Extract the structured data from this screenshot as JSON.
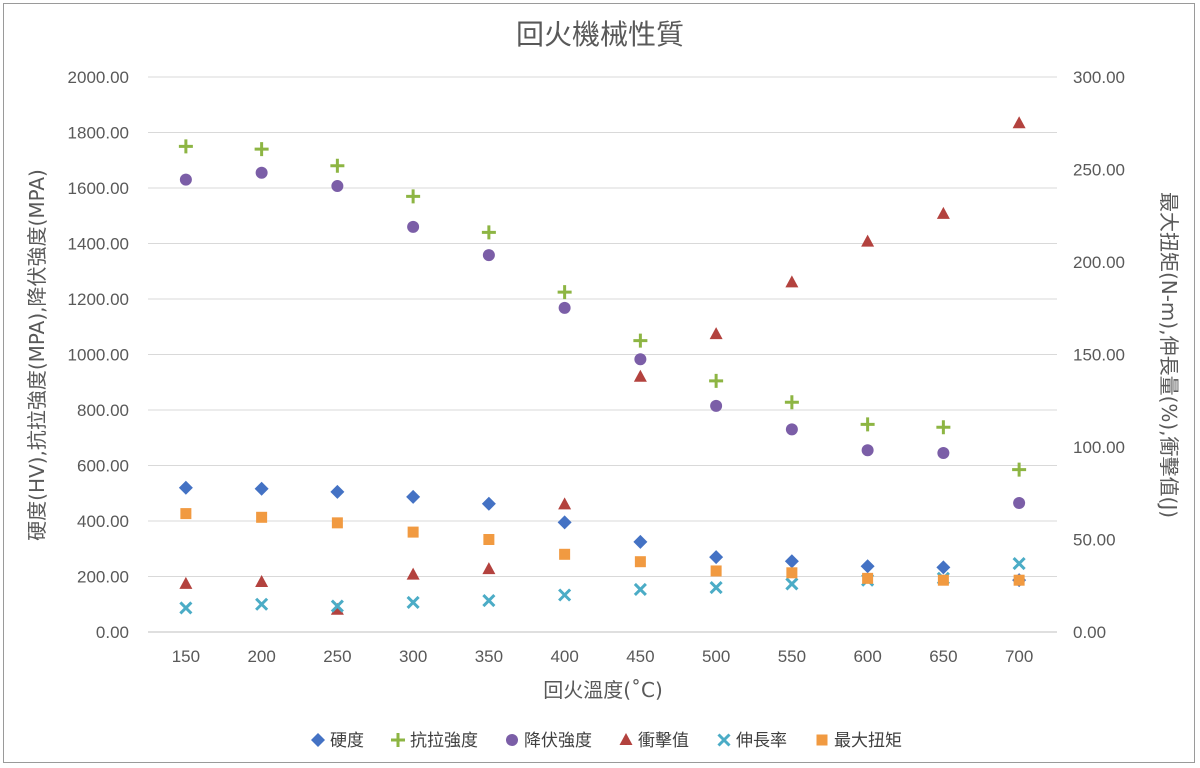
{
  "chart_data": {
    "type": "scatter",
    "title": "回火機械性質",
    "xlabel": "回火溫度(˚C)",
    "ylabel": "硬度(HV),抗拉強度(MPA),降伏強度(MPA)",
    "y2label": "最大扭矩(N-m),伸長量(%),衝擊值(J)",
    "categories": [
      150,
      200,
      250,
      300,
      350,
      400,
      450,
      500,
      550,
      600,
      650,
      700
    ],
    "x_tick_labels": [
      "150",
      "200",
      "250",
      "300",
      "350",
      "400",
      "450",
      "500",
      "550",
      "600",
      "650",
      "700"
    ],
    "ylim": [
      0,
      2000
    ],
    "y2lim": [
      0,
      300
    ],
    "y_tick_labels": [
      "0.00",
      "200.00",
      "400.00",
      "600.00",
      "800.00",
      "1000.00",
      "1200.00",
      "1400.00",
      "1600.00",
      "1800.00",
      "2000.00"
    ],
    "y2_tick_labels": [
      "0.00",
      "50.00",
      "100.00",
      "150.00",
      "200.00",
      "250.00",
      "300.00"
    ],
    "grid": true,
    "legend_position": "bottom",
    "series": [
      {
        "name": "硬度",
        "axis": "left",
        "marker": "diamond",
        "color": "#4472c4",
        "values": [
          520,
          516,
          505,
          487,
          462,
          395,
          325,
          270,
          255,
          237,
          233,
          187
        ]
      },
      {
        "name": "抗拉強度",
        "axis": "left",
        "marker": "plus",
        "color": "#8db543",
        "values": [
          1750,
          1740,
          1680,
          1570,
          1440,
          1225,
          1050,
          905,
          828,
          748,
          738,
          585
        ]
      },
      {
        "name": "降伏強度",
        "axis": "left",
        "marker": "circle",
        "color": "#7b5ea7",
        "values": [
          1630,
          1655,
          1607,
          1460,
          1358,
          1168,
          983,
          815,
          730,
          655,
          645,
          465
        ]
      },
      {
        "name": "衝擊值",
        "axis": "right",
        "marker": "triangle",
        "color": "#b3423e",
        "values": [
          26,
          27,
          12,
          31,
          34,
          69,
          138,
          161,
          189,
          211,
          226,
          275
        ]
      },
      {
        "name": "伸長率",
        "axis": "right",
        "marker": "x",
        "color": "#4bacc6",
        "values": [
          13,
          15,
          14,
          16,
          17,
          20,
          23,
          24,
          26,
          28,
          29,
          37
        ]
      },
      {
        "name": "最大扭矩",
        "axis": "right",
        "marker": "square",
        "color": "#f19a41",
        "values": [
          64,
          62,
          59,
          54,
          50,
          42,
          38,
          33,
          32,
          29,
          28,
          28
        ]
      }
    ]
  }
}
